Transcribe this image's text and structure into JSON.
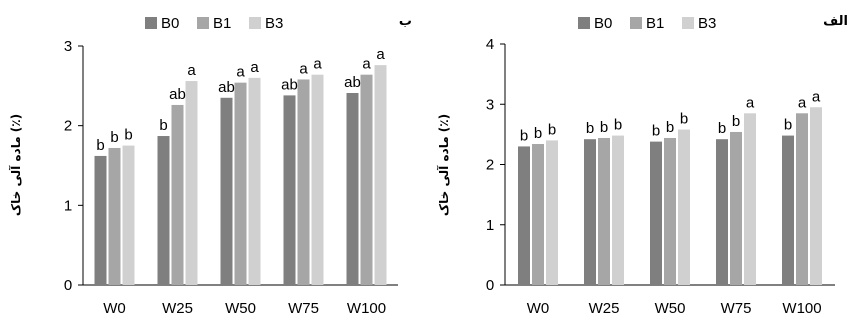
{
  "chart_data": [
    {
      "type": "bar",
      "panel_label": "ب",
      "ylabel": "ماده آلی خاک (٪)",
      "categories": [
        "W0",
        "W25",
        "W50",
        "W75",
        "W100"
      ],
      "ylim": [
        0,
        3
      ],
      "yticks": [
        "0",
        "1",
        "2",
        "3"
      ],
      "legend_position": "top",
      "grid": false,
      "series": [
        {
          "name": "B0",
          "color": "#7f7f7f",
          "values": [
            1.62,
            1.87,
            2.35,
            2.38,
            2.41
          ],
          "letters": [
            "b",
            "b",
            "ab",
            "ab",
            "ab"
          ]
        },
        {
          "name": "B1",
          "color": "#a6a6a6",
          "values": [
            1.72,
            2.26,
            2.54,
            2.58,
            2.64
          ],
          "letters": [
            "b",
            "ab",
            "a",
            "a",
            "a"
          ]
        },
        {
          "name": "B3",
          "color": "#d0d0d0",
          "values": [
            1.75,
            2.56,
            2.6,
            2.64,
            2.76
          ],
          "letters": [
            "b",
            "a",
            "a",
            "a",
            "a"
          ]
        }
      ]
    },
    {
      "type": "bar",
      "panel_label": "الف",
      "ylabel": "ماده آلی خاک (٪)",
      "categories": [
        "W0",
        "W25",
        "W50",
        "W75",
        "W100"
      ],
      "ylim": [
        0,
        4
      ],
      "yticks": [
        "0",
        "1",
        "2",
        "3",
        "4"
      ],
      "legend_position": "top",
      "grid": false,
      "series": [
        {
          "name": "B0",
          "color": "#7f7f7f",
          "values": [
            2.3,
            2.42,
            2.38,
            2.42,
            2.48
          ],
          "letters": [
            "b",
            "b",
            "b",
            "b",
            "b"
          ]
        },
        {
          "name": "B1",
          "color": "#a6a6a6",
          "values": [
            2.34,
            2.44,
            2.44,
            2.54,
            2.85
          ],
          "letters": [
            "b",
            "b",
            "b",
            "b",
            "a"
          ]
        },
        {
          "name": "B3",
          "color": "#d0d0d0",
          "values": [
            2.4,
            2.48,
            2.58,
            2.85,
            2.95
          ],
          "letters": [
            "b",
            "b",
            "b",
            "a",
            "a"
          ]
        }
      ]
    }
  ]
}
